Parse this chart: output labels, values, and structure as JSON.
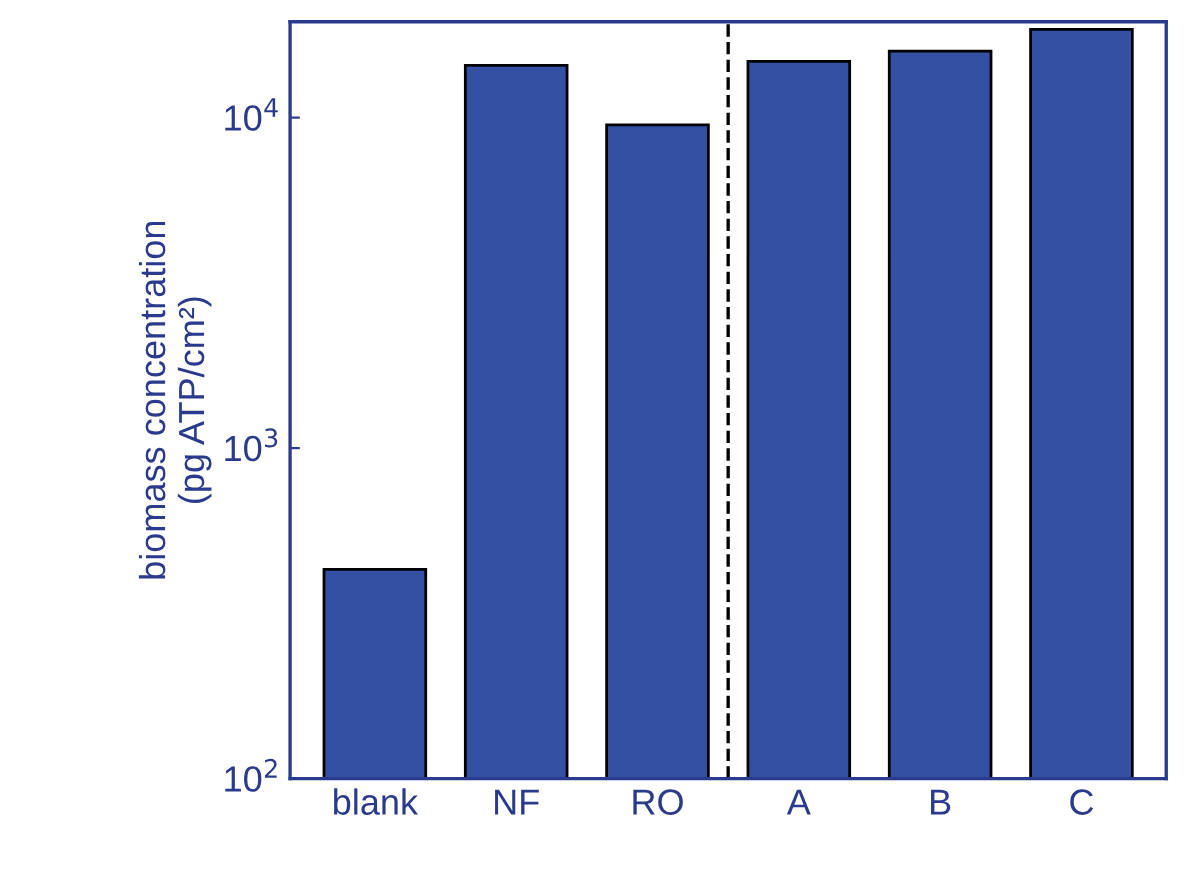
{
  "chart_data": {
    "type": "bar",
    "ylabel": "biomass concentration\n(pg ATP/cm²)",
    "categories": [
      "blank",
      "NF",
      "RO",
      "A",
      "B",
      "C"
    ],
    "values": [
      430,
      14400,
      9500,
      14800,
      15900,
      18500
    ],
    "color": "#3350a3",
    "log": true,
    "ylim": [
      100,
      19500
    ],
    "yticks": [
      {
        "value": 100,
        "label": "10$^{2}$"
      },
      {
        "value": 1000,
        "label": "10$^{3}$"
      },
      {
        "value": 10000,
        "label": "10$^{4}$"
      }
    ],
    "grid": false
  }
}
